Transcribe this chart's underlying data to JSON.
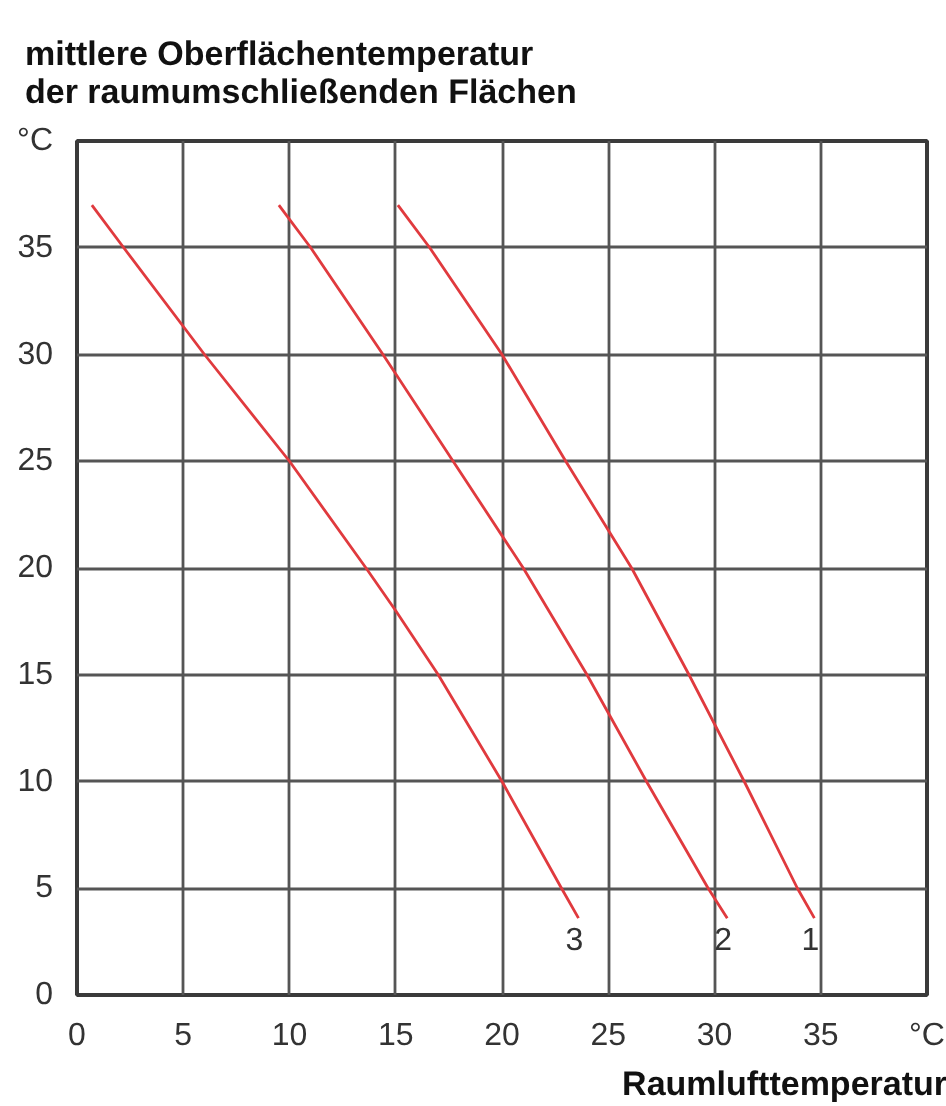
{
  "chart_data": {
    "type": "line",
    "ylabel": "mittlere Oberflächentemperatur\nder raumumschließenden Flächen",
    "xlabel": "Raumlufttemperatur",
    "xlim": [
      0,
      40
    ],
    "ylim": [
      0,
      40
    ],
    "xticks": [
      0,
      5,
      10,
      15,
      20,
      25,
      30,
      35,
      {
        "value": 40,
        "label": "°C"
      }
    ],
    "yticks": [
      0,
      5,
      10,
      15,
      20,
      25,
      30,
      35,
      {
        "value": 40,
        "label": "°C"
      }
    ],
    "grid": true,
    "line_style": "solid",
    "series": [
      {
        "name": "1",
        "color": "#e03a3e",
        "x": [
          15.1,
          16.6,
          20,
          23.0,
          26.1,
          28.8,
          31.4,
          33.9,
          34.7
        ],
        "values": [
          37.0,
          35,
          30,
          25,
          20,
          15,
          10,
          5,
          3.6
        ]
      },
      {
        "name": "2",
        "color": "#e03a3e",
        "x": [
          9.5,
          11.0,
          14.4,
          17.7,
          21.0,
          24.0,
          26.8,
          29.7,
          30.6
        ],
        "values": [
          37.0,
          35,
          30,
          25,
          20,
          15,
          10,
          5,
          3.6
        ]
      },
      {
        "name": "3",
        "color": "#e03a3e",
        "x": [
          0.7,
          2.2,
          6.0,
          10,
          13.6,
          15,
          17.0,
          20,
          22.8,
          23.6
        ],
        "values": [
          37.0,
          35,
          30,
          25,
          20,
          18,
          15,
          10,
          5,
          3.6
        ]
      }
    ]
  }
}
